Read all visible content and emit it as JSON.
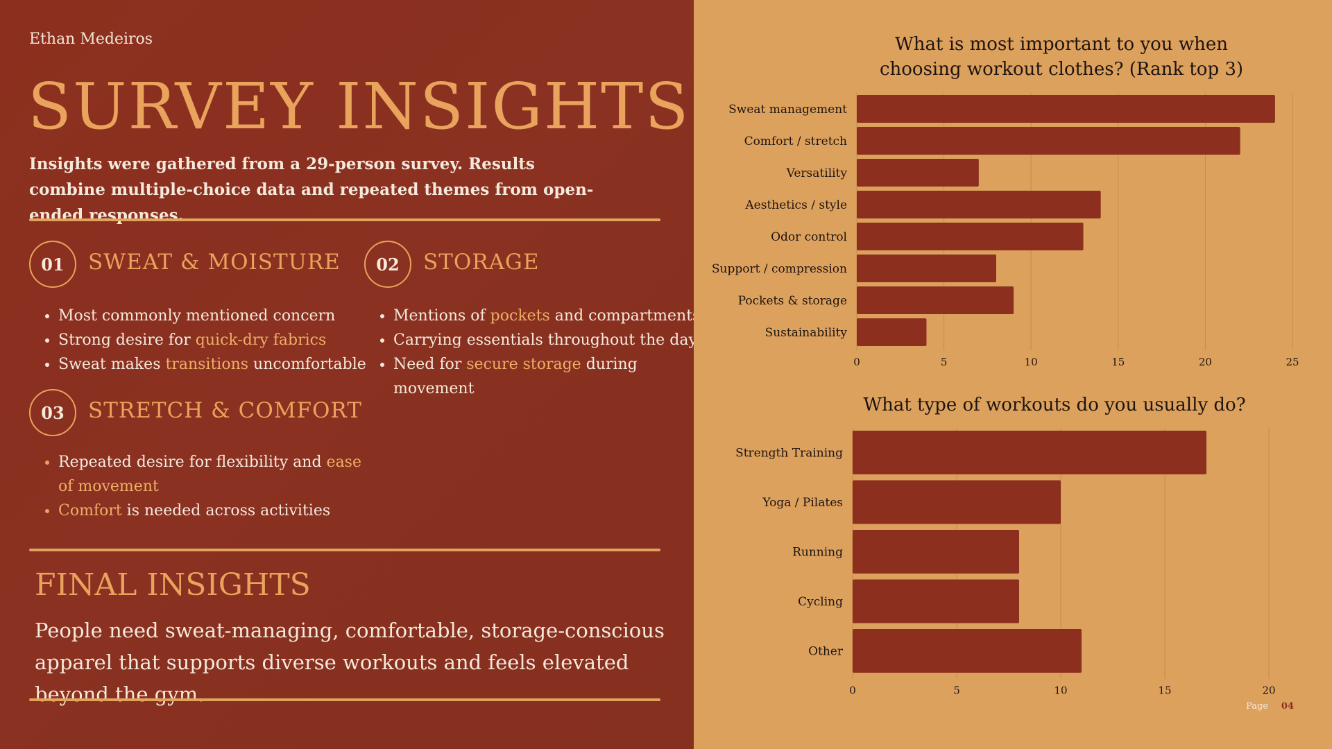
{
  "author": "Ethan Medeiros",
  "title": "SURVEY INSIGHTS",
  "intro": "Insights were gathered from a 29-person survey. Results combine multiple-choice data and repeated themes from open-ended responses.",
  "sections": [
    {
      "number": "01",
      "title": "SWEAT & MOISTURE",
      "bullets": [
        [
          {
            "t": "Most commonly mentioned concern",
            "h": false
          }
        ],
        [
          {
            "t": "Strong desire for ",
            "h": false
          },
          {
            "t": "quick-dry fabrics",
            "h": true
          }
        ],
        [
          {
            "t": "Sweat makes ",
            "h": false
          },
          {
            "t": "transitions",
            "h": true
          },
          {
            "t": " uncomfortable",
            "h": false
          }
        ]
      ]
    },
    {
      "number": "02",
      "title": "STORAGE",
      "bullets": [
        [
          {
            "t": "Mentions of ",
            "h": false
          },
          {
            "t": "pockets",
            "h": true
          },
          {
            "t": " and compartments",
            "h": false
          }
        ],
        [
          {
            "t": "Carrying essentials throughout the day",
            "h": false
          }
        ],
        [
          {
            "t": "Need for ",
            "h": false
          },
          {
            "t": "secure storage",
            "h": true
          },
          {
            "t": " during movement",
            "h": false
          }
        ]
      ]
    },
    {
      "number": "03",
      "title": "STRETCH & COMFORT",
      "bullets": [
        [
          {
            "t": "Repeated desire for flexibility and ",
            "h": false
          },
          {
            "t": "ease of movement",
            "h": true
          }
        ],
        [
          {
            "t": "Comfort",
            "h": true
          },
          {
            "t": " is needed across activities",
            "h": false
          }
        ]
      ]
    }
  ],
  "final": {
    "title": "FINAL INSIGHTS",
    "text": "People need sweat-managing, comfortable, storage-conscious apparel that supports diverse workouts and feels elevated beyond the gym."
  },
  "footer": {
    "page_label": "Page",
    "page_number": "04"
  },
  "colors": {
    "bar": "#8c2f1e",
    "panel_left": "#8a3121",
    "panel_right": "#dda15e",
    "accent": "#e9a35c",
    "grid": "#c98a4a"
  },
  "chart_data": [
    {
      "type": "bar",
      "orientation": "horizontal",
      "title": "What is most important to you when choosing workout clothes? (Rank top 3)",
      "categories": [
        "Sweat management",
        "Comfort / stretch",
        "Versatility",
        "Aesthetics / style",
        "Odor control",
        "Support / compression",
        "Pockets & storage",
        "Sustainability"
      ],
      "values": [
        24,
        22,
        7,
        14,
        13,
        8,
        9,
        4
      ],
      "xlim": [
        0,
        25
      ],
      "ticks": [
        "0",
        "5",
        "10",
        "15",
        "20",
        "25"
      ],
      "grid": true
    },
    {
      "type": "bar",
      "orientation": "horizontal",
      "title": "What type of workouts do you usually do?",
      "categories": [
        "Strength Training",
        "Yoga / Pilates",
        "Running",
        "Cycling",
        "Other"
      ],
      "values": [
        17,
        10,
        8,
        8,
        11
      ],
      "xlim": [
        0,
        20
      ],
      "ticks": [
        "0",
        "5",
        "10",
        "15",
        "20"
      ],
      "grid": true
    }
  ]
}
